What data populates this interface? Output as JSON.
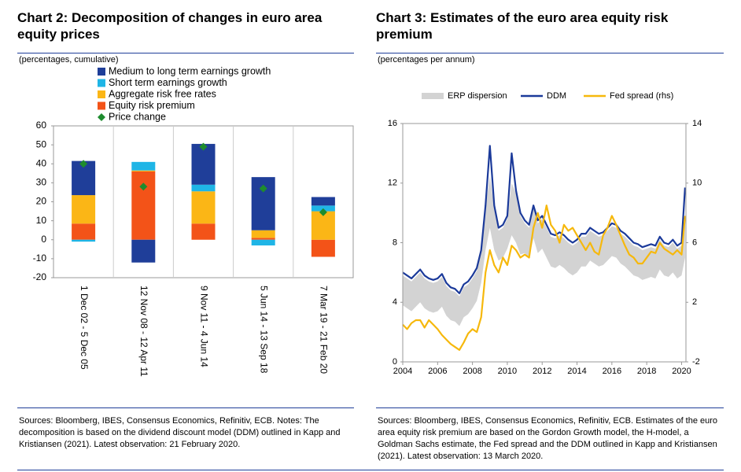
{
  "chart_data": [
    {
      "type": "bar",
      "stacked": true,
      "title": "Chart 2: Decomposition of changes in euro area equity prices",
      "subtitle": "(percentages, cumulative)",
      "note": "Sources: Bloomberg, IBES, Consensus Economics, Refinitiv, ECB. Notes: The decomposition is based on the dividend discount model (DDM) outlined in Kapp and Kristiansen (2021). Latest observation: 21 February 2020.",
      "categories": [
        "1 Dec 02 - 5 Dec 05",
        "12 Nov 08 - 12 Apr 11",
        "9 Nov 11 - 4 Jun 14",
        "5 Jun 14 - 13 Sep 18",
        "7 Mar 19 - 21 Feb 20"
      ],
      "series": [
        {
          "name": "Medium to long term earnings growth",
          "color": "#1f3e99",
          "values": [
            18,
            -12,
            21.5,
            28,
            4.5
          ]
        },
        {
          "name": "Short term earnings growth",
          "color": "#1fb5e6",
          "values": [
            -1,
            4.5,
            3.5,
            -3,
            3
          ]
        },
        {
          "name": "Aggregate risk free rates",
          "color": "#fbb616",
          "values": [
            15,
            0.5,
            17,
            4,
            15
          ]
        },
        {
          "name": "Equity risk premium",
          "color": "#f35318",
          "values": [
            8.5,
            36,
            8.5,
            1,
            -9
          ]
        },
        {
          "name": "Price change",
          "type": "scatter",
          "marker": "diamond",
          "color": "#1e8c2e",
          "values": [
            40,
            28,
            49,
            27,
            14.5
          ]
        }
      ],
      "ylim": [
        -20,
        60
      ],
      "yticks": [
        -20,
        -10,
        0,
        10,
        20,
        30,
        40,
        50,
        60
      ],
      "grid": false
    },
    {
      "type": "line",
      "title": "Chart 3: Estimates of the euro area equity risk premium",
      "subtitle": "(percentages per annum)",
      "note": "Sources: Bloomberg, IBES, Consensus Economics, Refinitiv, ECB. Estimates of the euro area equity risk premium are based on the Gordon Growth model, the H-model, a Goldman Sachs estimate, the Fed spread and the DDM outlined in Kapp and Kristiansen (2021). Latest observation: 13 March 2020.",
      "x": [
        2004,
        2004.25,
        2004.5,
        2004.75,
        2005,
        2005.25,
        2005.5,
        2005.75,
        2006,
        2006.25,
        2006.5,
        2006.75,
        2007,
        2007.25,
        2007.5,
        2007.75,
        2008,
        2008.25,
        2008.5,
        2008.75,
        2009,
        2009.25,
        2009.5,
        2009.75,
        2010,
        2010.25,
        2010.5,
        2010.75,
        2011,
        2011.25,
        2011.5,
        2011.75,
        2012,
        2012.25,
        2012.5,
        2012.75,
        2013,
        2013.25,
        2013.5,
        2013.75,
        2014,
        2014.25,
        2014.5,
        2014.75,
        2015,
        2015.25,
        2015.5,
        2015.75,
        2016,
        2016.25,
        2016.5,
        2016.75,
        2017,
        2017.25,
        2017.5,
        2017.75,
        2018,
        2018.25,
        2018.5,
        2018.75,
        2019,
        2019.25,
        2019.5,
        2019.75,
        2020,
        2020.2
      ],
      "series": [
        {
          "name": "ERP dispersion",
          "type": "band",
          "color": "#d3d3d3",
          "low": [
            3.8,
            3.6,
            3.4,
            3.7,
            4.0,
            3.6,
            3.4,
            3.3,
            3.4,
            3.7,
            3.1,
            2.8,
            2.7,
            2.4,
            3.0,
            3.2,
            3.6,
            4.1,
            5.3,
            7.5,
            9.0,
            7.5,
            6.8,
            7.0,
            7.6,
            8.5,
            8.0,
            7.2,
            7.3,
            7.0,
            8.3,
            7.3,
            7.6,
            7.0,
            6.4,
            6.3,
            6.5,
            6.3,
            6.0,
            5.8,
            6.0,
            6.4,
            6.4,
            6.8,
            6.6,
            6.4,
            6.5,
            6.8,
            7.1,
            7.0,
            6.6,
            6.4,
            6.1,
            5.8,
            5.7,
            5.5,
            5.6,
            5.7,
            5.6,
            6.2,
            5.8,
            5.7,
            6.0,
            5.6,
            5.8,
            7.0
          ],
          "high": [
            5.8,
            5.6,
            5.4,
            5.7,
            6.0,
            5.6,
            5.4,
            5.3,
            5.4,
            5.7,
            5.1,
            4.8,
            4.7,
            4.4,
            5.0,
            5.2,
            5.6,
            6.1,
            7.3,
            10.3,
            12.5,
            10.3,
            8.8,
            9.0,
            9.6,
            12.0,
            11.3,
            9.8,
            9.3,
            9.0,
            10.3,
            9.3,
            9.6,
            9.0,
            8.4,
            8.3,
            8.5,
            8.3,
            8.0,
            7.8,
            8.0,
            8.4,
            8.4,
            8.8,
            8.6,
            8.4,
            8.5,
            8.8,
            9.1,
            9.0,
            8.6,
            8.4,
            8.1,
            7.8,
            7.7,
            7.5,
            7.6,
            7.7,
            7.6,
            8.2,
            7.8,
            7.7,
            8.0,
            7.6,
            7.8,
            9.5
          ]
        },
        {
          "name": "DDM",
          "color": "#1b3a9a",
          "values": [
            6.0,
            5.8,
            5.6,
            5.9,
            6.2,
            5.8,
            5.6,
            5.5,
            5.6,
            5.9,
            5.3,
            5.0,
            4.9,
            4.6,
            5.2,
            5.4,
            5.8,
            6.3,
            7.5,
            10.5,
            14.5,
            10.5,
            9.0,
            9.2,
            9.8,
            14.0,
            11.5,
            10.0,
            9.5,
            9.2,
            10.5,
            9.5,
            9.8,
            9.2,
            8.6,
            8.5,
            8.7,
            8.5,
            8.2,
            8.0,
            8.2,
            8.6,
            8.6,
            9.0,
            8.8,
            8.6,
            8.7,
            9.0,
            9.3,
            9.2,
            8.8,
            8.6,
            8.3,
            8.0,
            7.9,
            7.7,
            7.8,
            7.9,
            7.8,
            8.4,
            8.0,
            7.9,
            8.2,
            7.8,
            8.0,
            11.7
          ]
        },
        {
          "name": "Fed spread (rhs)",
          "axis": "y2",
          "color": "#f6b80c",
          "values": [
            0.5,
            0.2,
            0.6,
            0.8,
            0.8,
            0.3,
            0.8,
            0.5,
            0.2,
            -0.2,
            -0.5,
            -0.8,
            -1.0,
            -1.2,
            -0.7,
            -0.1,
            0.2,
            0.0,
            1.0,
            4.0,
            5.5,
            4.5,
            4.0,
            5.0,
            4.5,
            5.8,
            5.5,
            5.0,
            5.2,
            5.0,
            7.0,
            8.0,
            7.0,
            8.5,
            7.2,
            6.8,
            6.0,
            7.2,
            6.8,
            7.0,
            6.5,
            6.0,
            5.5,
            6.0,
            5.4,
            5.2,
            6.5,
            7.0,
            7.8,
            7.2,
            6.5,
            5.8,
            5.2,
            5.0,
            4.6,
            4.6,
            5.0,
            5.4,
            5.3,
            6.0,
            5.6,
            5.4,
            5.2,
            5.5,
            5.2,
            7.8
          ]
        }
      ],
      "xlim": [
        2004,
        2020.25
      ],
      "xticks": [
        2004,
        2006,
        2008,
        2010,
        2012,
        2014,
        2016,
        2018,
        2020
      ],
      "ylim": [
        0,
        16
      ],
      "yticks": [
        0,
        4,
        8,
        12,
        16
      ],
      "y2lim": [
        -2,
        14
      ],
      "y2ticks": [
        -2,
        2,
        6,
        10,
        14
      ],
      "grid": false
    }
  ]
}
